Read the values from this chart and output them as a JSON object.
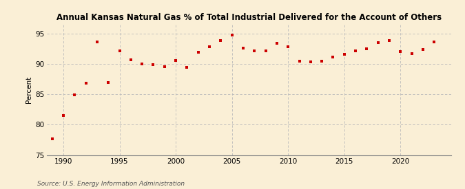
{
  "title": "Annual Kansas Natural Gas % of Total Industrial Delivered for the Account of Others",
  "ylabel": "Percent",
  "source": "Source: U.S. Energy Information Administration",
  "background_color": "#faefd6",
  "plot_background_color": "#faefd6",
  "marker_color": "#cc0000",
  "grid_color": "#bbbbbb",
  "xlim": [
    1988.5,
    2024.5
  ],
  "ylim": [
    75,
    96.5
  ],
  "yticks": [
    75,
    80,
    85,
    90,
    95
  ],
  "xticks": [
    1990,
    1995,
    2000,
    2005,
    2010,
    2015,
    2020
  ],
  "years": [
    1989,
    1990,
    1991,
    1992,
    1993,
    1994,
    1995,
    1996,
    1997,
    1998,
    1999,
    2000,
    2001,
    2002,
    2003,
    2004,
    2005,
    2006,
    2007,
    2008,
    2009,
    2010,
    2011,
    2012,
    2013,
    2014,
    2015,
    2016,
    2017,
    2018,
    2019,
    2020,
    2021,
    2022,
    2023
  ],
  "values": [
    77.7,
    81.5,
    84.9,
    86.8,
    93.6,
    87.0,
    92.2,
    90.7,
    90.0,
    89.9,
    89.6,
    90.6,
    89.5,
    91.9,
    92.9,
    93.9,
    94.8,
    92.6,
    92.2,
    92.2,
    93.4,
    92.9,
    90.5,
    90.3,
    90.5,
    91.2,
    91.6,
    92.2,
    92.5,
    93.5,
    93.9,
    92.0,
    91.7,
    92.4,
    93.6
  ],
  "title_fontsize": 8.5,
  "ylabel_fontsize": 7.5,
  "tick_fontsize": 7.5,
  "source_fontsize": 6.5
}
